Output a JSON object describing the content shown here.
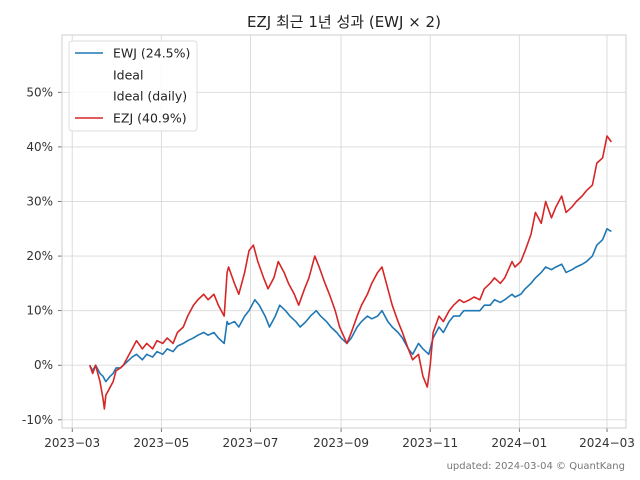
{
  "chart_data": {
    "type": "line",
    "title": "EZJ 최근 1년 성과 (EWJ × 2)",
    "xlabel": "",
    "ylabel": "",
    "footer": "updated: 2024-03-04 © QuantKang",
    "x_range": [
      "2023-02-22",
      "2024-03-14"
    ],
    "ylim": [
      -0.115,
      0.605
    ],
    "y_ticks": [
      -0.1,
      0,
      0.1,
      0.2,
      0.3,
      0.4,
      0.5
    ],
    "y_tick_labels": [
      "-10%",
      "0%",
      "10%",
      "20%",
      "30%",
      "40%",
      "50%"
    ],
    "x_ticks": [
      "2023-03-01",
      "2023-05-01",
      "2023-07-01",
      "2023-09-01",
      "2023-11-01",
      "2024-01-01",
      "2024-03-01"
    ],
    "x_tick_labels": [
      "2023−03",
      "2023−05",
      "2023−07",
      "2023−09",
      "2023−11",
      "2024−01",
      "2024−03"
    ],
    "grid": true,
    "legend_position": "top-left",
    "legend": [
      {
        "label": "EWJ (24.5%)",
        "color": "#1f77b4"
      },
      {
        "label": "Ideal",
        "color": ""
      },
      {
        "label": "Ideal (daily)",
        "color": ""
      },
      {
        "label": "EZJ (40.9%)",
        "color": "#d62728"
      }
    ],
    "series": [
      {
        "name": "EWJ (24.5%)",
        "color": "#1f77b4",
        "points": [
          [
            "2023-03-13",
            0.0
          ],
          [
            "2023-03-15",
            -0.01
          ],
          [
            "2023-03-17",
            0.0
          ],
          [
            "2023-03-20",
            -0.015
          ],
          [
            "2023-03-22",
            -0.02
          ],
          [
            "2023-03-24",
            -0.03
          ],
          [
            "2023-03-27",
            -0.02
          ],
          [
            "2023-03-29",
            -0.015
          ],
          [
            "2023-03-31",
            -0.005
          ],
          [
            "2023-04-03",
            -0.005
          ],
          [
            "2023-04-05",
            0.0
          ],
          [
            "2023-04-07",
            0.005
          ],
          [
            "2023-04-11",
            0.015
          ],
          [
            "2023-04-14",
            0.02
          ],
          [
            "2023-04-18",
            0.01
          ],
          [
            "2023-04-21",
            0.02
          ],
          [
            "2023-04-25",
            0.015
          ],
          [
            "2023-04-28",
            0.025
          ],
          [
            "2023-05-02",
            0.02
          ],
          [
            "2023-05-05",
            0.03
          ],
          [
            "2023-05-09",
            0.025
          ],
          [
            "2023-05-12",
            0.035
          ],
          [
            "2023-05-16",
            0.04
          ],
          [
            "2023-05-19",
            0.045
          ],
          [
            "2023-05-23",
            0.05
          ],
          [
            "2023-05-26",
            0.055
          ],
          [
            "2023-05-30",
            0.06
          ],
          [
            "2023-06-02",
            0.055
          ],
          [
            "2023-06-06",
            0.06
          ],
          [
            "2023-06-09",
            0.05
          ],
          [
            "2023-06-13",
            0.04
          ],
          [
            "2023-06-15",
            0.08
          ],
          [
            "2023-06-16",
            0.075
          ],
          [
            "2023-06-20",
            0.08
          ],
          [
            "2023-06-23",
            0.07
          ],
          [
            "2023-06-27",
            0.09
          ],
          [
            "2023-06-30",
            0.1
          ],
          [
            "2023-07-04",
            0.12
          ],
          [
            "2023-07-07",
            0.11
          ],
          [
            "2023-07-11",
            0.09
          ],
          [
            "2023-07-14",
            0.07
          ],
          [
            "2023-07-18",
            0.09
          ],
          [
            "2023-07-21",
            0.11
          ],
          [
            "2023-07-25",
            0.1
          ],
          [
            "2023-07-28",
            0.09
          ],
          [
            "2023-08-01",
            0.08
          ],
          [
            "2023-08-04",
            0.07
          ],
          [
            "2023-08-08",
            0.08
          ],
          [
            "2023-08-11",
            0.09
          ],
          [
            "2023-08-15",
            0.1
          ],
          [
            "2023-08-18",
            0.09
          ],
          [
            "2023-08-22",
            0.08
          ],
          [
            "2023-08-25",
            0.07
          ],
          [
            "2023-08-29",
            0.06
          ],
          [
            "2023-09-01",
            0.05
          ],
          [
            "2023-09-05",
            0.04
          ],
          [
            "2023-09-08",
            0.05
          ],
          [
            "2023-09-12",
            0.07
          ],
          [
            "2023-09-15",
            0.08
          ],
          [
            "2023-09-19",
            0.09
          ],
          [
            "2023-09-22",
            0.085
          ],
          [
            "2023-09-26",
            0.09
          ],
          [
            "2023-09-29",
            0.1
          ],
          [
            "2023-10-03",
            0.08
          ],
          [
            "2023-10-06",
            0.07
          ],
          [
            "2023-10-10",
            0.06
          ],
          [
            "2023-10-13",
            0.05
          ],
          [
            "2023-10-17",
            0.03
          ],
          [
            "2023-10-20",
            0.02
          ],
          [
            "2023-10-24",
            0.04
          ],
          [
            "2023-10-27",
            0.03
          ],
          [
            "2023-10-31",
            0.02
          ],
          [
            "2023-11-03",
            0.05
          ],
          [
            "2023-11-07",
            0.07
          ],
          [
            "2023-11-10",
            0.06
          ],
          [
            "2023-11-14",
            0.08
          ],
          [
            "2023-11-17",
            0.09
          ],
          [
            "2023-11-21",
            0.09
          ],
          [
            "2023-11-24",
            0.1
          ],
          [
            "2023-11-28",
            0.1
          ],
          [
            "2023-12-01",
            0.1
          ],
          [
            "2023-12-05",
            0.1
          ],
          [
            "2023-12-08",
            0.11
          ],
          [
            "2023-12-12",
            0.11
          ],
          [
            "2023-12-15",
            0.12
          ],
          [
            "2023-12-19",
            0.115
          ],
          [
            "2023-12-22",
            0.12
          ],
          [
            "2023-12-27",
            0.13
          ],
          [
            "2023-12-29",
            0.125
          ],
          [
            "2024-01-02",
            0.13
          ],
          [
            "2024-01-05",
            0.14
          ],
          [
            "2024-01-09",
            0.15
          ],
          [
            "2024-01-12",
            0.16
          ],
          [
            "2024-01-16",
            0.17
          ],
          [
            "2024-01-19",
            0.18
          ],
          [
            "2024-01-23",
            0.175
          ],
          [
            "2024-01-26",
            0.18
          ],
          [
            "2024-01-30",
            0.185
          ],
          [
            "2024-02-02",
            0.17
          ],
          [
            "2024-02-06",
            0.175
          ],
          [
            "2024-02-09",
            0.18
          ],
          [
            "2024-02-13",
            0.185
          ],
          [
            "2024-02-16",
            0.19
          ],
          [
            "2024-02-20",
            0.2
          ],
          [
            "2024-02-23",
            0.22
          ],
          [
            "2024-02-27",
            0.23
          ],
          [
            "2024-03-01",
            0.25
          ],
          [
            "2024-03-04",
            0.245
          ]
        ]
      },
      {
        "name": "EZJ (40.9%)",
        "color": "#d62728",
        "points": [
          [
            "2023-03-13",
            0.0
          ],
          [
            "2023-03-15",
            -0.015
          ],
          [
            "2023-03-17",
            0.0
          ],
          [
            "2023-03-20",
            -0.03
          ],
          [
            "2023-03-22",
            -0.06
          ],
          [
            "2023-03-23",
            -0.08
          ],
          [
            "2023-03-24",
            -0.055
          ],
          [
            "2023-03-27",
            -0.04
          ],
          [
            "2023-03-29",
            -0.03
          ],
          [
            "2023-03-31",
            -0.01
          ],
          [
            "2023-04-03",
            -0.005
          ],
          [
            "2023-04-05",
            0.0
          ],
          [
            "2023-04-07",
            0.01
          ],
          [
            "2023-04-11",
            0.03
          ],
          [
            "2023-04-14",
            0.045
          ],
          [
            "2023-04-18",
            0.03
          ],
          [
            "2023-04-21",
            0.04
          ],
          [
            "2023-04-25",
            0.03
          ],
          [
            "2023-04-28",
            0.045
          ],
          [
            "2023-05-02",
            0.04
          ],
          [
            "2023-05-05",
            0.05
          ],
          [
            "2023-05-09",
            0.04
          ],
          [
            "2023-05-12",
            0.06
          ],
          [
            "2023-05-16",
            0.07
          ],
          [
            "2023-05-19",
            0.09
          ],
          [
            "2023-05-23",
            0.11
          ],
          [
            "2023-05-26",
            0.12
          ],
          [
            "2023-05-30",
            0.13
          ],
          [
            "2023-06-02",
            0.12
          ],
          [
            "2023-06-06",
            0.13
          ],
          [
            "2023-06-09",
            0.11
          ],
          [
            "2023-06-13",
            0.09
          ],
          [
            "2023-06-14",
            0.13
          ],
          [
            "2023-06-15",
            0.17
          ],
          [
            "2023-06-16",
            0.18
          ],
          [
            "2023-06-20",
            0.15
          ],
          [
            "2023-06-23",
            0.13
          ],
          [
            "2023-06-27",
            0.17
          ],
          [
            "2023-06-30",
            0.21
          ],
          [
            "2023-07-03",
            0.22
          ],
          [
            "2023-07-06",
            0.19
          ],
          [
            "2023-07-10",
            0.16
          ],
          [
            "2023-07-13",
            0.14
          ],
          [
            "2023-07-17",
            0.16
          ],
          [
            "2023-07-20",
            0.19
          ],
          [
            "2023-07-24",
            0.17
          ],
          [
            "2023-07-27",
            0.15
          ],
          [
            "2023-07-31",
            0.13
          ],
          [
            "2023-08-03",
            0.11
          ],
          [
            "2023-08-07",
            0.14
          ],
          [
            "2023-08-10",
            0.16
          ],
          [
            "2023-08-14",
            0.2
          ],
          [
            "2023-08-17",
            0.18
          ],
          [
            "2023-08-21",
            0.15
          ],
          [
            "2023-08-24",
            0.13
          ],
          [
            "2023-08-28",
            0.1
          ],
          [
            "2023-08-31",
            0.07
          ],
          [
            "2023-09-05",
            0.04
          ],
          [
            "2023-09-08",
            0.06
          ],
          [
            "2023-09-12",
            0.09
          ],
          [
            "2023-09-15",
            0.11
          ],
          [
            "2023-09-19",
            0.13
          ],
          [
            "2023-09-22",
            0.15
          ],
          [
            "2023-09-26",
            0.17
          ],
          [
            "2023-09-29",
            0.18
          ],
          [
            "2023-10-03",
            0.14
          ],
          [
            "2023-10-06",
            0.11
          ],
          [
            "2023-10-10",
            0.08
          ],
          [
            "2023-10-13",
            0.06
          ],
          [
            "2023-10-17",
            0.03
          ],
          [
            "2023-10-20",
            0.01
          ],
          [
            "2023-10-24",
            0.02
          ],
          [
            "2023-10-27",
            -0.02
          ],
          [
            "2023-10-30",
            -0.04
          ],
          [
            "2023-11-01",
            0.0
          ],
          [
            "2023-11-03",
            0.06
          ],
          [
            "2023-11-07",
            0.09
          ],
          [
            "2023-11-10",
            0.08
          ],
          [
            "2023-11-14",
            0.1
          ],
          [
            "2023-11-17",
            0.11
          ],
          [
            "2023-11-21",
            0.12
          ],
          [
            "2023-11-24",
            0.115
          ],
          [
            "2023-11-28",
            0.12
          ],
          [
            "2023-12-01",
            0.125
          ],
          [
            "2023-12-05",
            0.12
          ],
          [
            "2023-12-08",
            0.14
          ],
          [
            "2023-12-12",
            0.15
          ],
          [
            "2023-12-15",
            0.16
          ],
          [
            "2023-12-19",
            0.15
          ],
          [
            "2023-12-22",
            0.16
          ],
          [
            "2023-12-27",
            0.19
          ],
          [
            "2023-12-29",
            0.18
          ],
          [
            "2024-01-02",
            0.19
          ],
          [
            "2024-01-05",
            0.21
          ],
          [
            "2024-01-09",
            0.24
          ],
          [
            "2024-01-12",
            0.28
          ],
          [
            "2024-01-16",
            0.26
          ],
          [
            "2024-01-19",
            0.3
          ],
          [
            "2024-01-23",
            0.27
          ],
          [
            "2024-01-26",
            0.29
          ],
          [
            "2024-01-30",
            0.31
          ],
          [
            "2024-02-02",
            0.28
          ],
          [
            "2024-02-06",
            0.29
          ],
          [
            "2024-02-09",
            0.3
          ],
          [
            "2024-02-13",
            0.31
          ],
          [
            "2024-02-16",
            0.32
          ],
          [
            "2024-02-20",
            0.33
          ],
          [
            "2024-02-23",
            0.37
          ],
          [
            "2024-02-27",
            0.38
          ],
          [
            "2024-03-01",
            0.42
          ],
          [
            "2024-03-04",
            0.409
          ]
        ]
      }
    ]
  }
}
